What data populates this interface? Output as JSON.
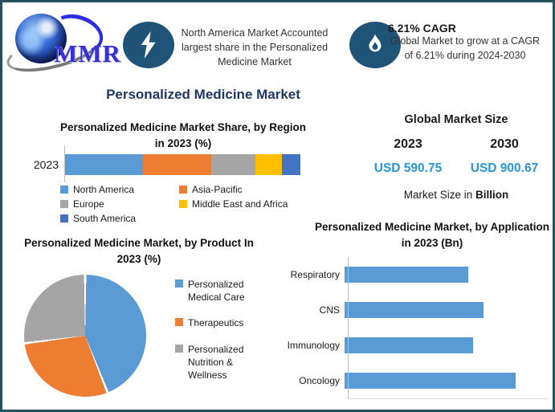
{
  "header": {
    "logo_text": "MMR",
    "insight_na": {
      "icon": "lightning-bolt-icon",
      "text": "North America Market Accounted largest share in the Personalized Medicine Market"
    },
    "insight_cagr": {
      "icon": "flame-icon",
      "title": "6.21% CAGR",
      "text": "Global Market to grow at a CAGR of 6.21% during 2024-2030"
    }
  },
  "main_title": "Personalized Medicine Market",
  "market_size": {
    "title": "Global Market Size",
    "year_left": "2023",
    "year_right": "2030",
    "value_left": "USD 590.75",
    "value_right": "USD 900.67",
    "note_prefix": "Market Size in ",
    "note_bold": "Billion",
    "value_color": "#2996d3"
  },
  "chart_data": [
    {
      "id": "region_share",
      "type": "bar",
      "subtype": "stacked-horizontal",
      "title": "Personalized Medicine Market Share, by Region in 2023 (%)",
      "categories": [
        "2023"
      ],
      "series": [
        {
          "name": "North America",
          "color": "#5b9bd5",
          "values": [
            33
          ]
        },
        {
          "name": "Asia-Pacific",
          "color": "#ed7d31",
          "values": [
            29
          ]
        },
        {
          "name": "Europe",
          "color": "#a5a5a5",
          "values": [
            19
          ]
        },
        {
          "name": "Middle East and Africa",
          "color": "#ffc000",
          "values": [
            11
          ]
        },
        {
          "name": "South America",
          "color": "#4472c4",
          "values": [
            8
          ]
        }
      ],
      "xlim": [
        0,
        100
      ],
      "legend_position": "bottom",
      "grid": false
    },
    {
      "id": "product_share",
      "type": "pie",
      "title": "Personalized Medicine Market, by Product In 2023 (%)",
      "labels": [
        "Personalized Medical Care",
        "Therapeutics",
        "Personalized Nutrition & Wellness"
      ],
      "values": [
        44,
        29,
        27
      ],
      "colors": [
        "#5b9bd5",
        "#ed7d31",
        "#a5a5a5"
      ],
      "legend_position": "right"
    },
    {
      "id": "application_size",
      "type": "bar",
      "subtype": "horizontal",
      "title": "Personalized Medicine Market, by Application in 2023 (Bn)",
      "categories": [
        "Respiratory",
        "CNS",
        "Immunology",
        "Oncology"
      ],
      "values": [
        72,
        81,
        75,
        100
      ],
      "color": "#5b9bd5",
      "xlim": [
        0,
        120
      ],
      "grid": false,
      "legend_position": "none"
    }
  ],
  "colors": {
    "border": "#24505f",
    "icon_circle": "#1f5377",
    "title_navy": "#1f3864",
    "value_blue": "#2996d3"
  }
}
